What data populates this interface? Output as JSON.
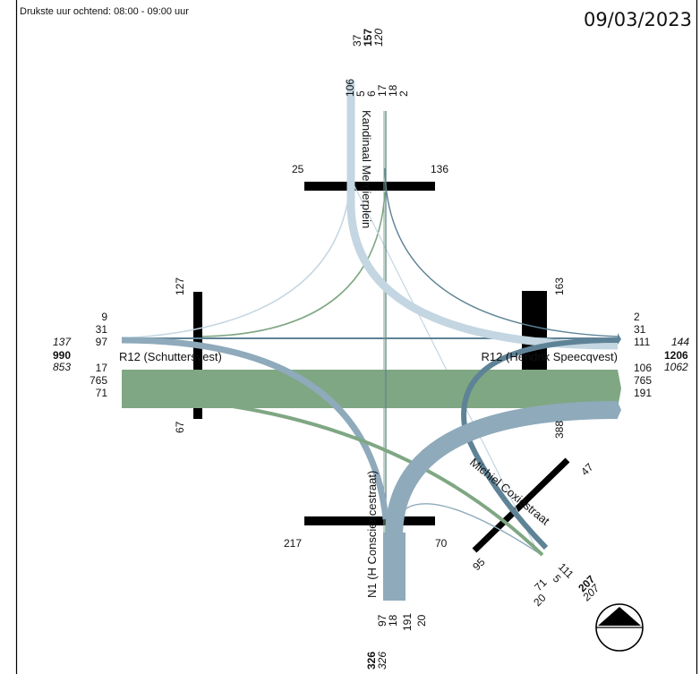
{
  "header": "Drukste uur ochtend: 08:00 - 09:00 uur",
  "date": "09/03/2023",
  "streets": {
    "north": "Kandinaal Mercierplein",
    "west": "R12 (Schuttersvest)",
    "east": "R12 (Hendrik Speecqvest)",
    "south": "N1 (H Consciencestraat)",
    "southeast": "Michiel Coxiestraat"
  },
  "colors": {
    "through_green": "#7fa783",
    "light_blue": "#c3d6e1",
    "mid_blue": "#8eaabb",
    "dark_blue": "#5f8396",
    "pale_green": "#a9c6ab",
    "crossing": "#000000"
  },
  "north": {
    "total_out": "37",
    "total": "157",
    "total_in": "120",
    "moves": [
      "106",
      "5",
      "6",
      "17",
      "18",
      "2"
    ],
    "cross_left": "25",
    "cross_right": "136"
  },
  "west": {
    "in_moves": [
      "9",
      "31",
      "97"
    ],
    "out_moves": [
      "17",
      "765",
      "71"
    ],
    "total_in": "137",
    "total": "990",
    "total_out": "853",
    "cross_top": "127",
    "cross_bottom": "67"
  },
  "east": {
    "in_moves": [
      "2",
      "31",
      "111"
    ],
    "out_moves": [
      "106",
      "765",
      "191"
    ],
    "total_in": "144",
    "total": "1206",
    "total_out": "1062",
    "cross_top": "163",
    "cross_bottom": "388"
  },
  "south": {
    "moves": [
      "97",
      "18",
      "191",
      "20"
    ],
    "total": "326",
    "total_other": "326",
    "cross_left": "217",
    "cross_right": "70"
  },
  "southeast": {
    "moves": [
      "111",
      "5",
      "71",
      "20"
    ],
    "total": "207",
    "total_other": "207",
    "cross_top": "47",
    "cross_bottom": "95"
  }
}
